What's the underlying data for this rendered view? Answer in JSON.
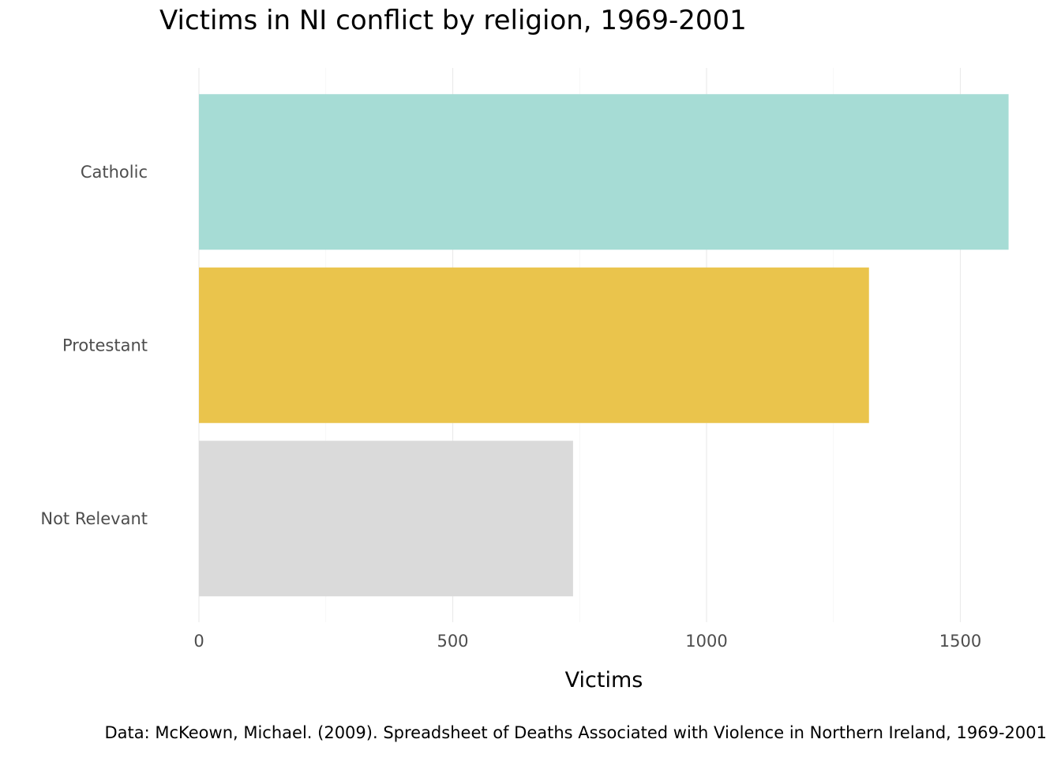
{
  "chart_data": {
    "type": "bar",
    "orientation": "horizontal",
    "title": "Victims in NI conflict by religion, 1969-2001",
    "xlabel": "Victims",
    "ylabel": "",
    "caption": "Data: McKeown, Michael. (2009). Spreadsheet of Deaths Associated with Violence in Northern Ireland, 1969-2001",
    "categories": [
      "Catholic",
      "Protestant",
      "Not Relevant"
    ],
    "values": [
      1595,
      1320,
      737
    ],
    "colors": [
      "#a6dcd5",
      "#eac44c",
      "#dadada"
    ],
    "xlim": [
      0,
      1600
    ],
    "xticks": [
      0,
      500,
      1000,
      1500
    ],
    "xtick_labels": [
      "0",
      "500",
      "1000",
      "1500"
    ],
    "grid": true,
    "legend": "none"
  }
}
